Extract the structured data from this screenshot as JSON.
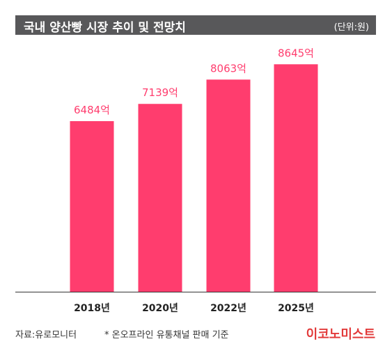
{
  "header": {
    "title": "국내 양산빵 시장 추이 및 전망치",
    "unit": "(단위:원)"
  },
  "footer": {
    "source": "자료:유로모니터",
    "note": "* 온오프라인 유통채널 판매 기준",
    "logo": "이코노미스트"
  },
  "colors": {
    "bar": "#ff3d6e",
    "label": "#ff3d6e",
    "header_bg": "#58585a"
  },
  "chart_data": {
    "type": "bar",
    "categories": [
      "2018년",
      "2020년",
      "2022년",
      "2025년"
    ],
    "values": [
      6484,
      7139,
      8063,
      8645
    ],
    "data_labels": [
      "6484억",
      "7139억",
      "8063억",
      "8645억"
    ],
    "ylim": [
      0,
      9500
    ]
  }
}
